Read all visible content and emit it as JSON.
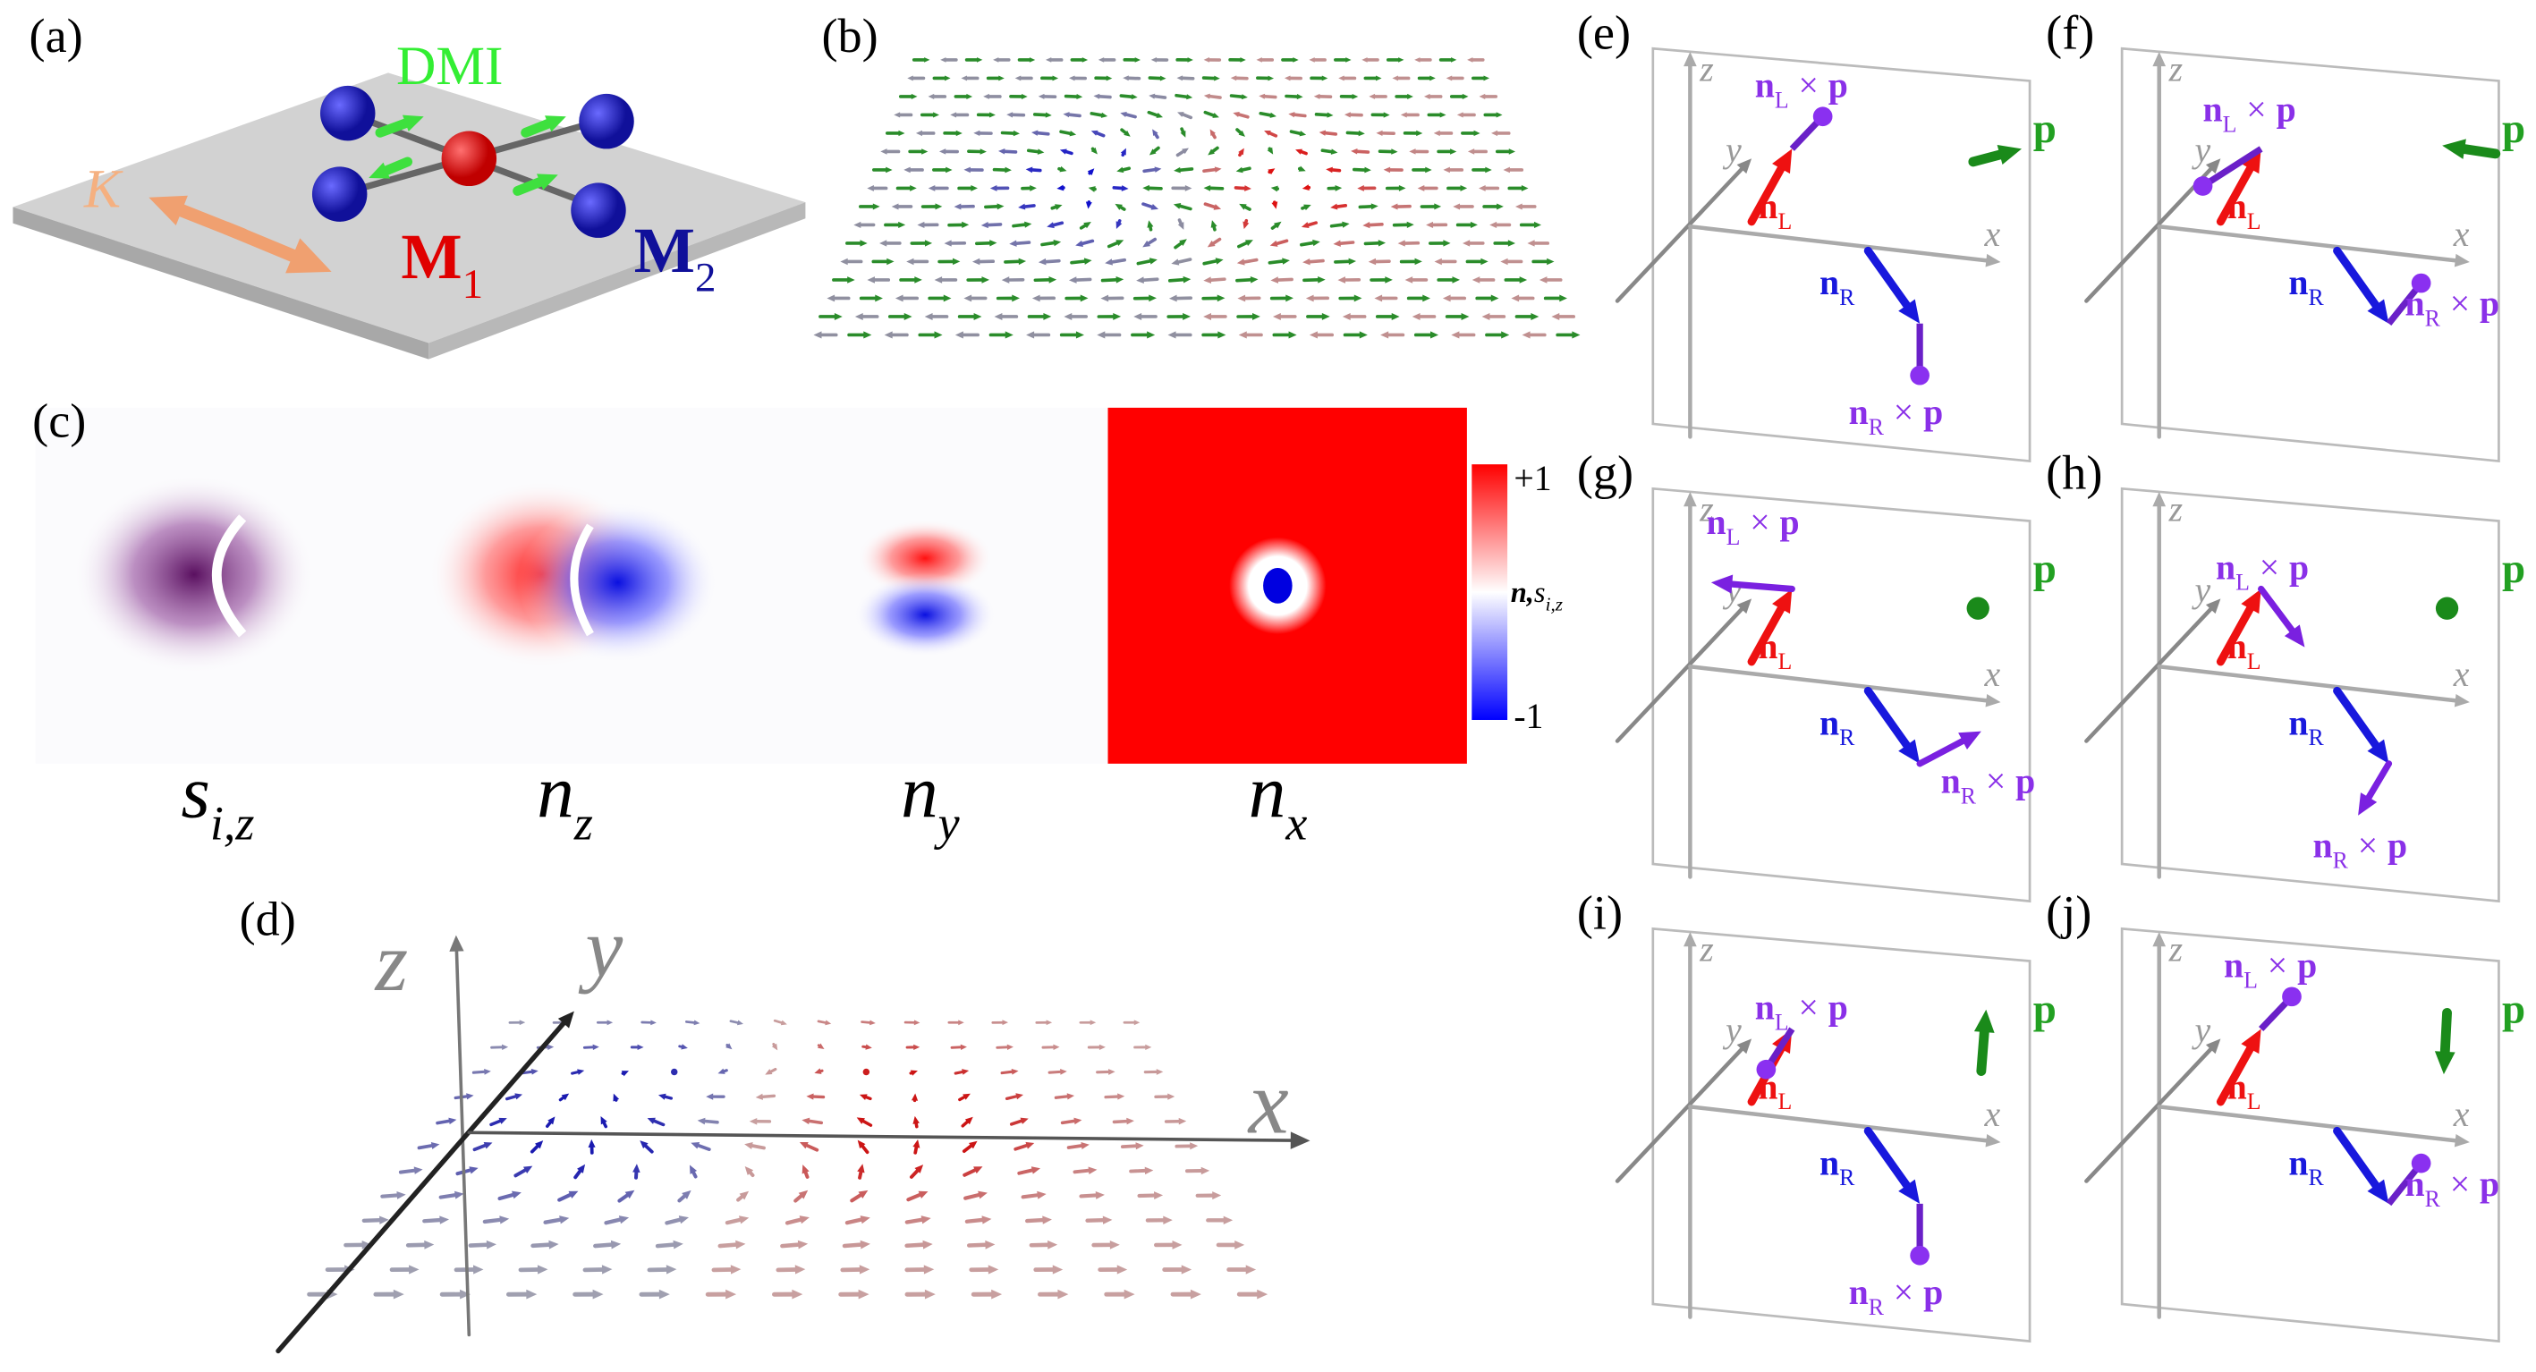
{
  "figure": {
    "a": {
      "label": "(a)",
      "dmi": "DMI",
      "k": "K",
      "m1": {
        "base": "M",
        "sub": "1"
      },
      "m2": {
        "base": "M",
        "sub": "2"
      }
    },
    "b": {
      "label": "(b)"
    },
    "c": {
      "label": "(c)",
      "maps": [
        {
          "base": "s",
          "sub": "i,z"
        },
        {
          "base": "n",
          "sub": "z"
        },
        {
          "base": "n",
          "sub": "y"
        },
        {
          "base": "n",
          "sub": "x"
        }
      ],
      "colorbar": {
        "max": "+1",
        "min": "-1",
        "label": {
          "base": "n,",
          "mid": "s",
          "sub": "i,z"
        }
      }
    },
    "d": {
      "label": "(d)",
      "x": "x",
      "y": "y",
      "z": "z"
    },
    "vector_panels": {
      "labels": [
        "(e)",
        "(f)",
        "(g)",
        "(h)",
        "(i)",
        "(j)"
      ],
      "x": "x",
      "y": "y",
      "z": "z",
      "n_L": {
        "base": "n",
        "sub": "L"
      },
      "n_R": {
        "base": "n",
        "sub": "R"
      },
      "cross": "×",
      "p": "p"
    }
  }
}
